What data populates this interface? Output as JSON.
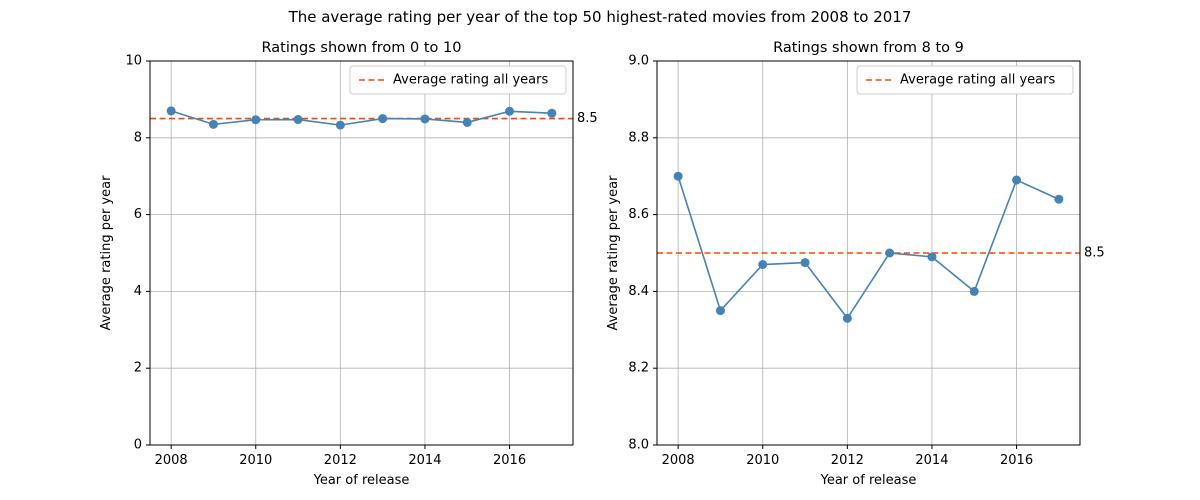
{
  "figure": {
    "suptitle": "The average rating per year of the top 50 highest-rated movies from 2008 to 2017"
  },
  "colors": {
    "series": "#4682b4",
    "average_line": "#ff4500",
    "grid": "#b0b0b0",
    "axes": "#000000"
  },
  "chart_data": [
    {
      "type": "line",
      "title": "Ratings shown from 0 to 10",
      "xlabel": "Year of release",
      "ylabel": "Average rating per year",
      "x": [
        2008,
        2009,
        2010,
        2011,
        2012,
        2013,
        2014,
        2015,
        2016,
        2017
      ],
      "series": [
        {
          "values": [
            8.7,
            8.35,
            8.47,
            8.475,
            8.33,
            8.5,
            8.49,
            8.4,
            8.69,
            8.64
          ],
          "marker": "circle"
        }
      ],
      "reference_line": {
        "name": "Average rating all years",
        "value": 8.5,
        "label": "8.5",
        "style": "dashed"
      },
      "xlim": [
        2007.5,
        2017.5
      ],
      "ylim": [
        0,
        10
      ],
      "xticks": [
        2008,
        2010,
        2012,
        2014,
        2016
      ],
      "xtick_labels": [
        "2008",
        "2010",
        "2012",
        "2014",
        "2016"
      ],
      "yticks": [
        0,
        2,
        4,
        6,
        8,
        10
      ],
      "ytick_labels": [
        "0",
        "2",
        "4",
        "6",
        "8",
        "10"
      ],
      "grid": true,
      "legend_position": "top-right"
    },
    {
      "type": "line",
      "title": "Ratings shown from 8 to 9",
      "xlabel": "Year of release",
      "ylabel": "Average rating per year",
      "x": [
        2008,
        2009,
        2010,
        2011,
        2012,
        2013,
        2014,
        2015,
        2016,
        2017
      ],
      "series": [
        {
          "values": [
            8.7,
            8.35,
            8.47,
            8.475,
            8.33,
            8.5,
            8.49,
            8.4,
            8.69,
            8.64
          ],
          "marker": "circle"
        }
      ],
      "reference_line": {
        "name": "Average rating all years",
        "value": 8.5,
        "label": "8.5",
        "style": "dashed"
      },
      "xlim": [
        2007.5,
        2017.5
      ],
      "ylim": [
        8.0,
        9.0
      ],
      "xticks": [
        2008,
        2010,
        2012,
        2014,
        2016
      ],
      "xtick_labels": [
        "2008",
        "2010",
        "2012",
        "2014",
        "2016"
      ],
      "yticks": [
        8.0,
        8.2,
        8.4,
        8.6,
        8.8,
        9.0
      ],
      "ytick_labels": [
        "8.0",
        "8.2",
        "8.4",
        "8.6",
        "8.8",
        "9.0"
      ],
      "grid": true,
      "legend_position": "top-right"
    }
  ]
}
